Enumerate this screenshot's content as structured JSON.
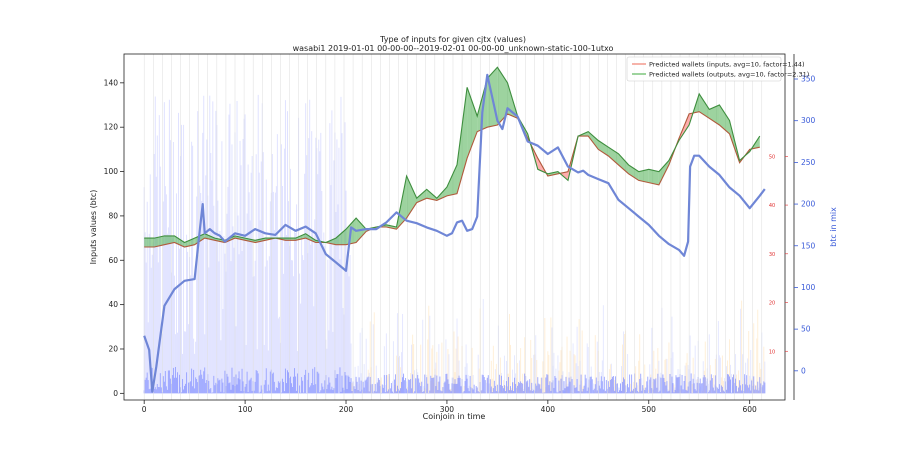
{
  "chart_data": {
    "type": "line",
    "title": "Type of inputs for given cjtx (values)",
    "subtitle": "wasabi1 2019-01-01 00-00-00--2019-02-01 00-00-00_unknown-static-100-1utxo",
    "xlabel": "Coinjoin in time",
    "ylabel": "Inputs values (btc)",
    "ylabel_right": "btc in mix",
    "xlim": [
      -20,
      635
    ],
    "ylim": [
      -3,
      153
    ],
    "ylim_right": [
      -35,
      380
    ],
    "ylim_right2": [
      0,
      71
    ],
    "x_ticks": [
      0,
      100,
      200,
      300,
      400,
      500,
      600
    ],
    "y_ticks": [
      0,
      20,
      40,
      60,
      80,
      100,
      120,
      140
    ],
    "y_ticks_right": [
      0,
      50,
      100,
      150,
      200,
      250,
      300,
      350
    ],
    "y_ticks_right2": [
      10,
      20,
      30,
      40,
      50
    ],
    "legend_position": "top-right",
    "colors": {
      "inputs_line": "#f08070",
      "outputs_line": "#5cb85c",
      "fill_red": "#ff6b6b",
      "fill_green": "#4caf50",
      "btc_in_mix": "#6f86d6",
      "bars": "#aab4ff",
      "right_axis2": "#e03030"
    },
    "series": [
      {
        "name": "Predicted wallets (inputs, avg=10, factor=1.44)",
        "x": [
          0,
          10,
          20,
          30,
          40,
          50,
          60,
          70,
          80,
          90,
          100,
          110,
          120,
          130,
          140,
          150,
          160,
          170,
          180,
          190,
          200,
          210,
          220,
          230,
          240,
          250,
          260,
          270,
          280,
          290,
          300,
          310,
          320,
          330,
          340,
          350,
          360,
          370,
          380,
          390,
          400,
          410,
          420,
          430,
          440,
          450,
          460,
          470,
          480,
          490,
          500,
          510,
          520,
          530,
          540,
          550,
          560,
          570,
          580,
          590,
          600,
          610
        ],
        "values": [
          66,
          66,
          67,
          68,
          66,
          67,
          70,
          69,
          68,
          70,
          69,
          68,
          69,
          70,
          69,
          69,
          70,
          68,
          68,
          67,
          67,
          68,
          73,
          75,
          75,
          74,
          79,
          86,
          88,
          87,
          89,
          90,
          106,
          118,
          120,
          121,
          126,
          124,
          115,
          106,
          98,
          99,
          100,
          116,
          116,
          110,
          107,
          103,
          99,
          96,
          95,
          94,
          103,
          115,
          126,
          127,
          124,
          121,
          117,
          104,
          110,
          111
        ]
      },
      {
        "name": "Predicted wallets (outputs, avg=10, factor=2.31)",
        "x": [
          0,
          10,
          20,
          30,
          40,
          50,
          60,
          70,
          80,
          90,
          100,
          110,
          120,
          130,
          140,
          150,
          160,
          170,
          180,
          190,
          200,
          210,
          220,
          230,
          240,
          250,
          260,
          270,
          280,
          290,
          300,
          310,
          320,
          330,
          340,
          350,
          360,
          370,
          380,
          390,
          400,
          410,
          420,
          430,
          440,
          450,
          460,
          470,
          480,
          490,
          500,
          510,
          520,
          530,
          540,
          550,
          560,
          570,
          580,
          590,
          600,
          610
        ],
        "values": [
          70,
          70,
          71,
          71,
          68,
          70,
          72,
          70,
          69,
          71,
          70,
          69,
          70,
          70,
          70,
          70,
          72,
          69,
          68,
          70,
          74,
          79,
          74,
          75,
          76,
          75,
          98,
          88,
          92,
          88,
          93,
          103,
          138,
          125,
          142,
          147,
          140,
          125,
          117,
          101,
          99,
          100,
          96,
          116,
          118,
          114,
          111,
          108,
          103,
          100,
          101,
          100,
          105,
          114,
          121,
          135,
          128,
          130,
          123,
          105,
          109,
          116
        ]
      },
      {
        "name": "btc in mix",
        "axis": "right",
        "x": [
          0,
          5,
          8,
          12,
          20,
          30,
          40,
          50,
          55,
          58,
          60,
          65,
          70,
          75,
          80,
          90,
          100,
          110,
          120,
          130,
          140,
          150,
          160,
          170,
          180,
          190,
          195,
          200,
          205,
          210,
          220,
          230,
          240,
          250,
          260,
          270,
          280,
          290,
          300,
          305,
          310,
          315,
          320,
          325,
          330,
          335,
          340,
          350,
          355,
          360,
          365,
          370,
          380,
          390,
          400,
          410,
          420,
          430,
          435,
          440,
          450,
          460,
          470,
          480,
          490,
          500,
          510,
          520,
          530,
          535,
          539,
          541,
          545,
          550,
          560,
          570,
          580,
          590,
          600,
          610,
          615
        ],
        "values": [
          42,
          25,
          -25,
          5,
          78,
          98,
          108,
          110,
          168,
          200,
          165,
          170,
          165,
          162,
          155,
          165,
          162,
          170,
          165,
          163,
          175,
          168,
          173,
          165,
          140,
          130,
          125,
          120,
          172,
          168,
          170,
          170,
          178,
          190,
          180,
          177,
          172,
          168,
          162,
          165,
          178,
          180,
          168,
          170,
          185,
          310,
          355,
          300,
          290,
          315,
          310,
          305,
          275,
          270,
          260,
          268,
          245,
          238,
          240,
          235,
          230,
          225,
          205,
          195,
          185,
          175,
          162,
          152,
          145,
          138,
          155,
          245,
          258,
          258,
          245,
          235,
          220,
          210,
          195,
          210,
          218
        ]
      }
    ]
  }
}
